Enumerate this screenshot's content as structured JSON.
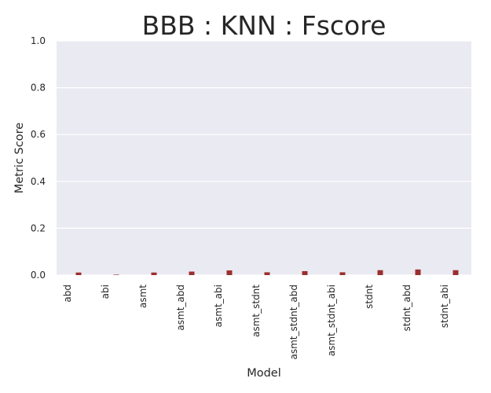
{
  "chart_data": {
    "type": "bar",
    "title": "BBB : KNN : Fscore",
    "xlabel": "Model",
    "ylabel": "Metric Score",
    "ylim": [
      0,
      1.0
    ],
    "yticks": [
      "0.0",
      "0.2",
      "0.4",
      "0.6",
      "0.8",
      "1.0"
    ],
    "grid": true,
    "categories": [
      "abd",
      "abi",
      "asmt",
      "asmt_abd",
      "asmt_abi",
      "asmt_stdnt",
      "asmt_stdnt_abd",
      "asmt_stdnt_abi",
      "stdnt",
      "stdnt_abd",
      "stdnt_abi"
    ],
    "series": [
      {
        "values": [
          0.0,
          0.0,
          0.0,
          0.0,
          0.0,
          0.0,
          0.0,
          0.0,
          0.0,
          0.0,
          0.0
        ],
        "color": "#3a6bb0"
      },
      {
        "values": [
          0.011,
          0.002,
          0.011,
          0.015,
          0.02,
          0.012,
          0.017,
          0.012,
          0.021,
          0.024,
          0.021
        ],
        "color": "#9b2f2f"
      }
    ],
    "colors": {
      "plot_background": "#eaeaf2",
      "grid": "#ffffff",
      "text": "#262626"
    }
  }
}
